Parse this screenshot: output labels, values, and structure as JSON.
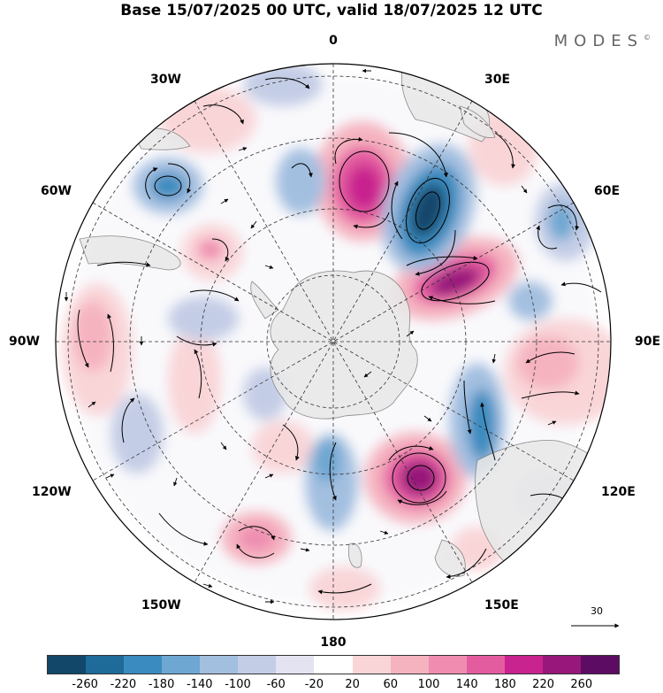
{
  "title": "Base 15/07/2025 00 UTC, valid 18/07/2025 12 UTC",
  "brand": "MODES",
  "brand_mark": "©",
  "longitude_labels": {
    "deg0": "0",
    "deg30e": "30E",
    "deg60e": "60E",
    "deg90e": "90E",
    "deg120e": "120E",
    "deg150e": "150E",
    "deg180": "180",
    "deg150w": "150W",
    "deg120w": "120W",
    "deg90w": "90W",
    "deg60w": "60W",
    "deg30w": "30W"
  },
  "reference_vector": "30",
  "colorbar": {
    "colors": [
      "#12476a",
      "#1e6a99",
      "#3a8bbf",
      "#6ea7d2",
      "#a3bfe0",
      "#c4cde6",
      "#e3e3f2",
      "#ffffff",
      "#f9d5d8",
      "#f5b3c0",
      "#ef8cb0",
      "#e45ca0",
      "#c8238e",
      "#97187a",
      "#5c0c63"
    ],
    "ticks": [
      "-260",
      "-220",
      "-180",
      "-140",
      "-100",
      "-60",
      "-20",
      "20",
      "60",
      "100",
      "140",
      "180",
      "220",
      "260"
    ]
  },
  "map": {
    "land_color": "#e8e8e8",
    "gridline_color": "#333333",
    "projection": "south polar stereographic"
  }
}
